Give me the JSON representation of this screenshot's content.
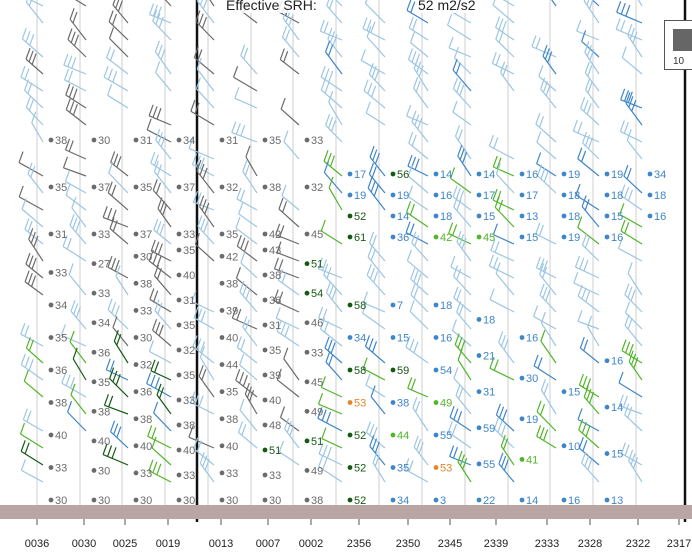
{
  "header": {
    "metric_label": "Effective SRH:",
    "metric_value": "52 m2/s2"
  },
  "legend": {
    "label": "10"
  },
  "colors": {
    "ground": "#b9a5a4",
    "grid": "#cfcfcf",
    "time_line": "#111111",
    "gray": "#6b6b6b",
    "lightblue": "#9cc6e4",
    "blue": "#3f86c8",
    "green": "#52b52a",
    "darkgreen": "#155a13",
    "orange": "#e5862b"
  },
  "chart_data": {
    "type": "scatter",
    "description_kind": "time-height wind barb profile",
    "x_tick_labels": [
      "0036",
      "0030",
      "0025",
      "0019",
      "0013",
      "0007",
      "0002",
      "2356",
      "2350",
      "2345",
      "2339",
      "2333",
      "2328",
      "2322",
      "2317"
    ],
    "profile_labels": {
      "0036": [
        38,
        35,
        31,
        33,
        34,
        35,
        36,
        38,
        40,
        33,
        30
      ],
      "0030": [
        30,
        37,
        33,
        27,
        33,
        34,
        36,
        35,
        38,
        40,
        30,
        30
      ],
      "0025": [
        31,
        35,
        37,
        30,
        38,
        33,
        30,
        32,
        36,
        38,
        40,
        33,
        30
      ],
      "0019": [
        34,
        37,
        33,
        35,
        40,
        31,
        35,
        32,
        35,
        33,
        38,
        40,
        33,
        30
      ],
      "0013": [
        31,
        32,
        35,
        42,
        38,
        39,
        40,
        44,
        35,
        38,
        40,
        33,
        30
      ],
      "0007": [
        35,
        38,
        42,
        43,
        38,
        36,
        31,
        35,
        39,
        40,
        48,
        51,
        33,
        30
      ],
      "0002": [
        33,
        32,
        45,
        51,
        54,
        46,
        33,
        45,
        49,
        51,
        49,
        38
      ],
      "2356": [
        17,
        19,
        52,
        61,
        58,
        34,
        58,
        53,
        52,
        52,
        52
      ],
      "2350": [
        56,
        19,
        14,
        36,
        7,
        15,
        59,
        38,
        44,
        35,
        34
      ],
      "2345": [
        14,
        16,
        18,
        42,
        18,
        16,
        54,
        49,
        55,
        53,
        3
      ],
      "2339": [
        14,
        17,
        15,
        45,
        18,
        21,
        31,
        59,
        55,
        22
      ],
      "2333": [
        16,
        17,
        13,
        15,
        16,
        30,
        19,
        41,
        14
      ],
      "2328": [
        19,
        18,
        18,
        19,
        15,
        10,
        16
      ],
      "2322": [
        19,
        18,
        15,
        16,
        16,
        14,
        15,
        13
      ],
      "2317": [
        34,
        18,
        16
      ]
    },
    "grid": true
  }
}
